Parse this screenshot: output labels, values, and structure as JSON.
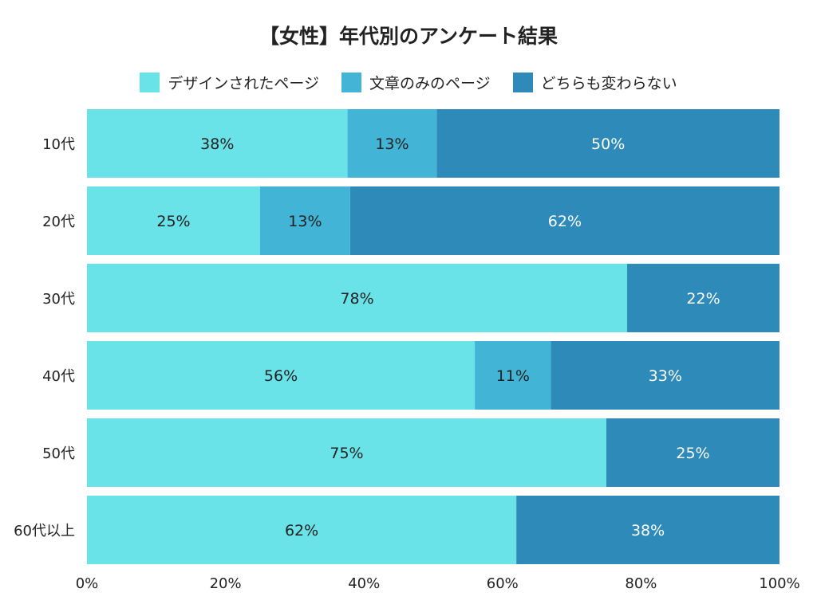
{
  "chart_data": {
    "type": "bar",
    "orientation": "horizontal",
    "stacked": "100%",
    "title": "【女性】年代別のアンケート結果",
    "categories": [
      "10代",
      "20代",
      "30代",
      "40代",
      "50代",
      "60代以上"
    ],
    "series": [
      {
        "name": "デザインされたページ",
        "color": "#6ae3e8",
        "label_color": "#222222",
        "values": [
          38,
          25,
          78,
          56,
          75,
          62
        ]
      },
      {
        "name": "文章のみのページ",
        "color": "#42b4d6",
        "label_color": "#222222",
        "values": [
          13,
          13,
          0,
          11,
          0,
          0
        ]
      },
      {
        "name": "どちらも変わらない",
        "color": "#2e8ab8",
        "label_color": "#ffffff",
        "values": [
          50,
          62,
          22,
          33,
          25,
          38
        ]
      }
    ],
    "xlim": [
      0,
      100
    ],
    "xticks": [
      "0%",
      "20%",
      "40%",
      "60%",
      "80%",
      "100%"
    ],
    "xlabel": "",
    "ylabel": "",
    "grid": false,
    "legend_position": "top"
  }
}
